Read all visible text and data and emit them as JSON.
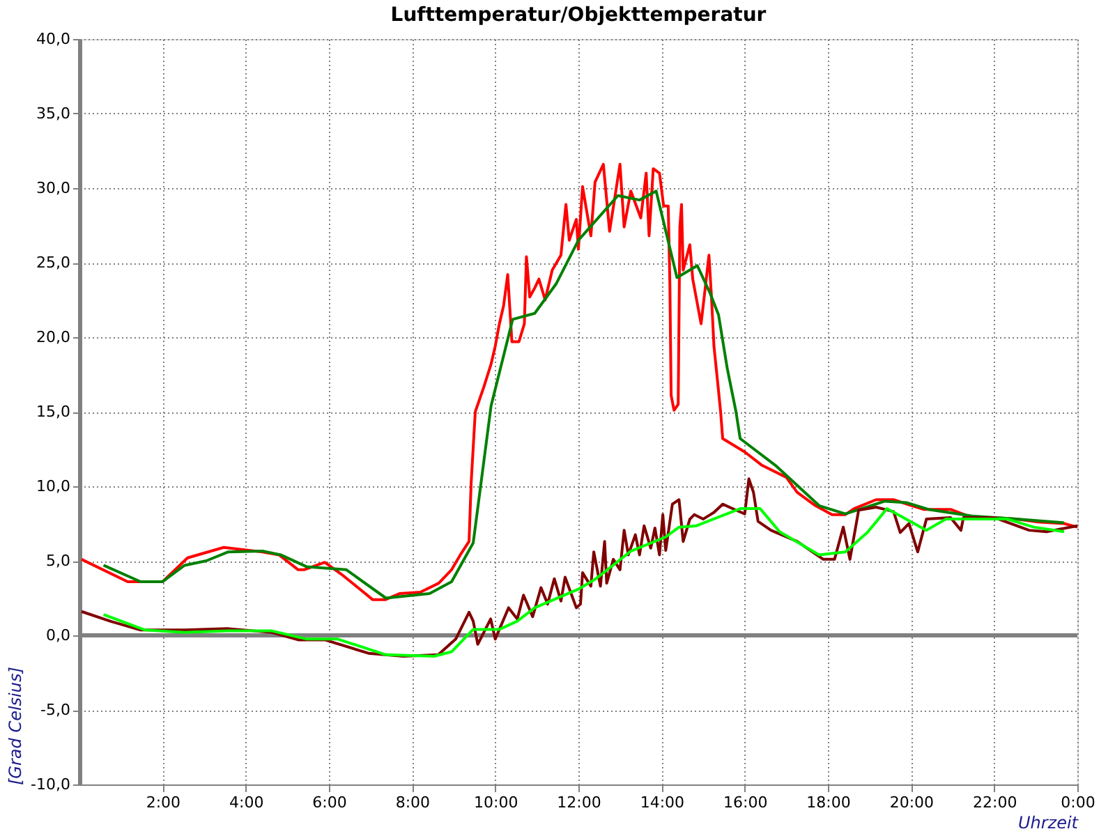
{
  "chart_data": {
    "type": "line",
    "title": "Lufttemperatur/Objekttemperatur",
    "xlabel": "Uhrzeit",
    "ylabel": "[Grad Celsius]",
    "xlim": [
      0,
      24
    ],
    "xticks": [
      {
        "value": 2,
        "label": "2:00"
      },
      {
        "value": 4,
        "label": "4:00"
      },
      {
        "value": 6,
        "label": "6:00"
      },
      {
        "value": 8,
        "label": "8:00"
      },
      {
        "value": 10,
        "label": "10:00"
      },
      {
        "value": 12,
        "label": "12:00"
      },
      {
        "value": 14,
        "label": "14:00"
      },
      {
        "value": 16,
        "label": "16:00"
      },
      {
        "value": 18,
        "label": "18:00"
      },
      {
        "value": 20,
        "label": "20:00"
      },
      {
        "value": 22,
        "label": "22:00"
      },
      {
        "value": 24,
        "label": "0:00"
      }
    ],
    "ylim": [
      -10,
      40
    ],
    "yticks": [
      {
        "value": -10,
        "label": "-10,0"
      },
      {
        "value": -5,
        "label": "-5,0"
      },
      {
        "value": 0,
        "label": "0,0"
      },
      {
        "value": 5,
        "label": "5,0"
      },
      {
        "value": 10,
        "label": "10,0"
      },
      {
        "value": 15,
        "label": "15,0"
      },
      {
        "value": 20,
        "label": "20,0"
      },
      {
        "value": 25,
        "label": "25,0"
      },
      {
        "value": 30,
        "label": "30,0"
      },
      {
        "value": 35,
        "label": "35,0"
      },
      {
        "value": 40,
        "label": "40,0"
      }
    ],
    "grid": true,
    "ref_lines": [
      {
        "axis": "y",
        "value": 0,
        "color": "#808080"
      }
    ],
    "series": [
      {
        "color": "#ff0000",
        "x": [
          0.05,
          1.16,
          2.0,
          2.6,
          3.47,
          4.4,
          4.8,
          5.26,
          5.4,
          5.6,
          5.9,
          6.3,
          6.7,
          7.05,
          7.36,
          7.7,
          8.2,
          8.64,
          8.95,
          9.16,
          9.37,
          9.42,
          9.52,
          9.73,
          9.9,
          10.0,
          10.1,
          10.2,
          10.3,
          10.4,
          10.57,
          10.7,
          10.75,
          10.83,
          10.95,
          11.05,
          11.2,
          11.37,
          11.58,
          11.7,
          11.78,
          11.95,
          12.0,
          12.1,
          12.3,
          12.4,
          12.6,
          12.75,
          13.0,
          13.1,
          13.26,
          13.5,
          13.63,
          13.7,
          13.8,
          13.95,
          14.05,
          14.16,
          14.2,
          14.23,
          14.3,
          14.4,
          14.44,
          14.48,
          14.52,
          14.68,
          14.75,
          14.95,
          15.05,
          15.14,
          15.2,
          15.26,
          15.37,
          15.42,
          15.47,
          16.0,
          16.42,
          17.0,
          17.26,
          17.7,
          18.1,
          18.42,
          18.63,
          19.16,
          19.58,
          19.9,
          20.3,
          20.95,
          21.47,
          22.0,
          22.53,
          23.05,
          23.68,
          24.0
        ],
        "values": [
          5.1,
          3.6,
          3.6,
          5.2,
          5.9,
          5.6,
          5.4,
          4.4,
          4.4,
          4.6,
          4.9,
          4.1,
          3.2,
          2.4,
          2.4,
          2.8,
          2.9,
          3.5,
          4.4,
          5.4,
          6.3,
          10.2,
          15.0,
          16.7,
          18.2,
          19.4,
          20.9,
          22.1,
          24.2,
          19.7,
          19.7,
          20.9,
          25.4,
          22.7,
          23.3,
          23.9,
          22.5,
          24.5,
          25.5,
          28.9,
          26.5,
          27.9,
          25.9,
          30.1,
          26.8,
          30.4,
          31.6,
          27.1,
          31.6,
          27.4,
          29.8,
          28.0,
          31.0,
          26.8,
          31.3,
          31.0,
          28.8,
          28.8,
          23.6,
          16.1,
          15.1,
          15.5,
          27.4,
          28.9,
          24.5,
          26.2,
          23.9,
          20.9,
          23.3,
          25.5,
          22.7,
          19.4,
          16.4,
          15.0,
          13.2,
          12.3,
          11.4,
          10.6,
          9.6,
          8.7,
          8.1,
          8.1,
          8.5,
          9.1,
          9.1,
          8.8,
          8.45,
          8.45,
          7.9,
          7.9,
          7.8,
          7.6,
          7.5,
          7.26
        ]
      },
      {
        "color": "#008000",
        "x": [
          0.58,
          1.47,
          2.0,
          2.53,
          3.05,
          3.58,
          4.42,
          4.84,
          5.47,
          6.42,
          7.37,
          8.42,
          8.95,
          9.47,
          9.9,
          10.42,
          10.95,
          11.47,
          12.0,
          12.95,
          13.47,
          13.87,
          14.37,
          14.86,
          15.16,
          15.37,
          15.58,
          15.79,
          15.89,
          16.74,
          17.79,
          18.42,
          19.37,
          19.9,
          20.42,
          21.47,
          22.53,
          23.68
        ],
        "values": [
          4.7,
          3.6,
          3.6,
          4.7,
          5.0,
          5.6,
          5.65,
          5.4,
          4.6,
          4.4,
          2.5,
          2.8,
          3.6,
          6.2,
          15.4,
          21.2,
          21.6,
          23.6,
          26.5,
          29.5,
          29.2,
          29.8,
          24.0,
          24.8,
          23.0,
          21.5,
          17.9,
          15.0,
          13.2,
          11.4,
          8.7,
          8.15,
          9.0,
          8.9,
          8.45,
          8.0,
          7.8,
          7.55
        ]
      },
      {
        "color": "#800000",
        "x": [
          0.05,
          0.74,
          1.47,
          2.53,
          3.58,
          4.63,
          5.26,
          5.9,
          6.95,
          7.79,
          8.63,
          9.05,
          9.37,
          9.47,
          9.58,
          9.89,
          10.0,
          10.32,
          10.53,
          10.68,
          10.9,
          11.1,
          11.26,
          11.42,
          11.58,
          11.68,
          11.95,
          12.05,
          12.1,
          12.3,
          12.37,
          12.53,
          12.63,
          12.68,
          12.84,
          13.0,
          13.1,
          13.2,
          13.37,
          13.47,
          13.58,
          13.74,
          13.84,
          13.95,
          14.03,
          14.1,
          14.26,
          14.42,
          14.52,
          14.68,
          14.79,
          15.0,
          15.26,
          15.47,
          15.79,
          16.0,
          16.1,
          16.21,
          16.32,
          16.63,
          17.26,
          17.89,
          18.16,
          18.37,
          18.53,
          18.74,
          19.16,
          19.58,
          19.74,
          19.95,
          20.16,
          20.37,
          20.95,
          21.2,
          21.26,
          22.0,
          22.84,
          23.26,
          24.0
        ],
        "values": [
          1.6,
          0.95,
          0.36,
          0.36,
          0.45,
          0.2,
          -0.3,
          -0.3,
          -1.2,
          -1.4,
          -1.3,
          -0.25,
          1.55,
          0.95,
          -0.6,
          1.1,
          -0.25,
          1.85,
          1.1,
          2.7,
          1.25,
          3.2,
          2.1,
          3.8,
          2.3,
          3.9,
          1.85,
          2.1,
          4.2,
          3.3,
          5.6,
          3.3,
          6.3,
          3.5,
          5.1,
          4.4,
          7.05,
          5.4,
          6.75,
          5.4,
          7.35,
          5.85,
          7.2,
          5.4,
          8.1,
          5.7,
          8.8,
          9.1,
          6.3,
          7.8,
          8.1,
          7.8,
          8.25,
          8.8,
          8.4,
          8.15,
          10.5,
          9.6,
          7.65,
          7.05,
          6.3,
          5.1,
          5.1,
          7.26,
          5.1,
          8.4,
          8.6,
          8.3,
          6.9,
          7.5,
          5.6,
          7.8,
          7.9,
          7.05,
          7.9,
          7.9,
          7.05,
          6.95,
          7.35
        ]
      },
      {
        "color": "#00ff00",
        "x": [
          0.58,
          1.58,
          2.53,
          3.58,
          4.63,
          5.47,
          6.21,
          7.37,
          8.53,
          8.95,
          9.47,
          10.1,
          10.53,
          10.95,
          12.0,
          12.42,
          12.74,
          13.26,
          14.1,
          14.42,
          14.84,
          15.89,
          16.37,
          16.84,
          17.79,
          18.42,
          18.95,
          19.42,
          20.37,
          20.84,
          22.32,
          22.95,
          23.68
        ],
        "values": [
          1.4,
          0.36,
          0.2,
          0.3,
          0.3,
          -0.25,
          -0.25,
          -1.3,
          -1.4,
          -1.1,
          0.4,
          0.4,
          0.95,
          1.85,
          3.1,
          3.8,
          4.5,
          5.65,
          6.6,
          7.26,
          7.35,
          8.5,
          8.5,
          6.95,
          5.4,
          5.6,
          6.9,
          8.5,
          7.05,
          7.8,
          7.8,
          7.26,
          6.95
        ]
      }
    ]
  }
}
